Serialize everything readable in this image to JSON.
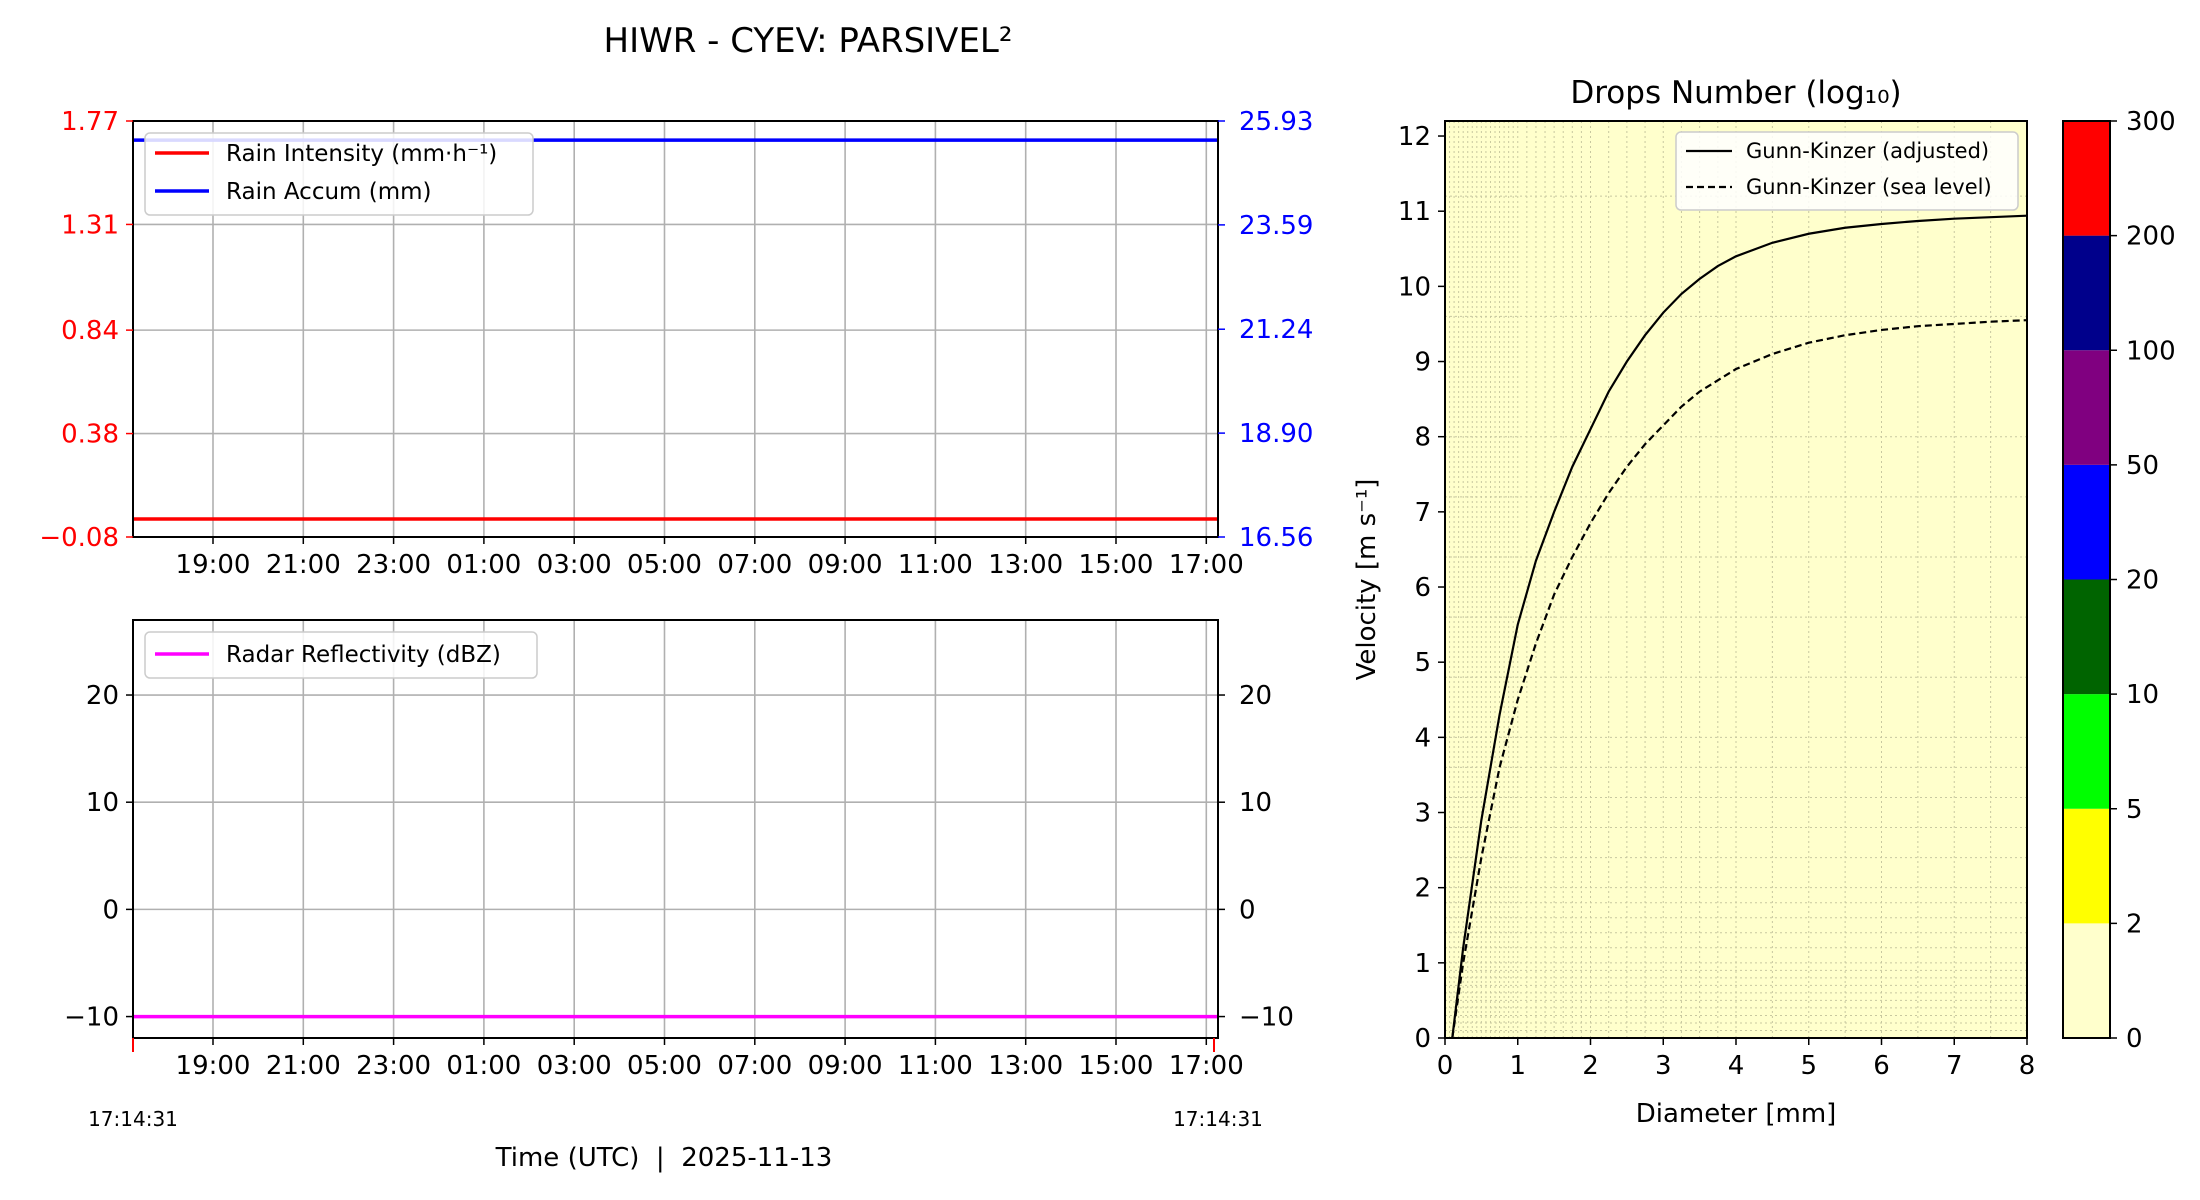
{
  "title": "HIWR - CYEV: PARSIVEL²",
  "colors": {
    "rain_intensity": "#ff0000",
    "rain_accum": "#0000ff",
    "reflectivity": "#ff00ff",
    "grid": "#b0b0b0",
    "dsd_background": "#ffffcc",
    "axis": "#000000"
  },
  "time_axis": {
    "tick_labels": [
      "19:00",
      "21:00",
      "23:00",
      "01:00",
      "03:00",
      "05:00",
      "07:00",
      "09:00",
      "11:00",
      "13:00",
      "15:00",
      "17:00"
    ],
    "start_label": "17:14:31",
    "end_label": "17:14:31",
    "xlabel": "Time (UTC)  |  2025-11-13"
  },
  "chart_data": [
    {
      "type": "line",
      "panel": "rain",
      "x_hours_from_start": [
        0,
        24
      ],
      "xlim_hours": [
        0,
        24
      ],
      "left_axis": {
        "ylim": [
          -0.08,
          1.77
        ],
        "tick_values": [
          -0.08,
          0.38,
          0.84,
          1.31,
          1.77
        ],
        "tick_labels": [
          "−0.08",
          "0.38",
          "0.84",
          "1.31",
          "1.77"
        ],
        "color": "#ff0000"
      },
      "right_axis": {
        "ylim": [
          16.56,
          25.93
        ],
        "tick_values": [
          16.56,
          18.9,
          21.24,
          23.59,
          25.93
        ],
        "tick_labels": [
          "16.56",
          "18.90",
          "21.24",
          "23.59",
          "25.93"
        ],
        "color": "#0000ff"
      },
      "series": [
        {
          "name": "Rain Intensity (mm·h⁻¹)",
          "axis": "left",
          "values": [
            0,
            0
          ],
          "color": "#ff0000"
        },
        {
          "name": "Rain Accum (mm)",
          "axis": "right",
          "values": [
            25.5,
            25.5
          ],
          "color": "#0000ff"
        }
      ],
      "legend": "upper-left",
      "grid": true
    },
    {
      "type": "line",
      "panel": "reflectivity",
      "x_hours_from_start": [
        0,
        24
      ],
      "xlim_hours": [
        0,
        24
      ],
      "ylim": [
        -12,
        27
      ],
      "tick_values": [
        -10,
        0,
        10,
        20
      ],
      "tick_labels": [
        "−10",
        "0",
        "10",
        "20"
      ],
      "series": [
        {
          "name": "Radar Reflectivity (dBZ)",
          "values": [
            -10,
            -10
          ],
          "color": "#ff00ff"
        }
      ],
      "legend": "upper-left",
      "grid": true
    },
    {
      "type": "heatmap",
      "panel": "dsd",
      "title": "Drops Number (log₁₀)",
      "xlabel": "Diameter [mm]",
      "ylabel": "Velocity [m s⁻¹]",
      "xlim": [
        0,
        8
      ],
      "ylim": [
        0,
        12.2
      ],
      "x_ticks": [
        0,
        1,
        2,
        3,
        4,
        5,
        6,
        7,
        8
      ],
      "y_ticks": [
        0,
        1,
        2,
        3,
        4,
        5,
        6,
        7,
        8,
        9,
        10,
        11,
        12
      ],
      "grid_minor_x": [
        0.0625,
        0.125,
        0.1875,
        0.25,
        0.3125,
        0.375,
        0.4375,
        0.5,
        0.5625,
        0.625,
        0.6875,
        0.75,
        0.8125,
        0.875,
        0.9375,
        1.0,
        1.125,
        1.25,
        1.375,
        1.5,
        1.625,
        1.75,
        1.875,
        2.0,
        2.25,
        2.5,
        2.75,
        3.0,
        3.25,
        3.5,
        3.75,
        4.0,
        4.5,
        5.0,
        5.5,
        6.0,
        6.5,
        7.0,
        7.5,
        8.0
      ],
      "grid_minor_y": [
        0.1,
        0.2,
        0.3,
        0.4,
        0.5,
        0.6,
        0.7,
        0.8,
        0.9,
        1.0,
        1.2,
        1.4,
        1.6,
        1.8,
        2.0,
        2.4,
        2.8,
        3.2,
        3.6,
        4.0,
        4.8,
        5.6,
        6.4,
        7.2,
        8.0,
        9.6,
        11.2
      ],
      "counts_all_zero": true,
      "series": [
        {
          "name": "Gunn-Kinzer (adjusted)",
          "style": "solid",
          "x": [
            0.1,
            0.25,
            0.5,
            0.75,
            1,
            1.25,
            1.5,
            1.75,
            2,
            2.25,
            2.5,
            2.75,
            3,
            3.25,
            3.5,
            3.75,
            4,
            4.5,
            5,
            5.5,
            6,
            6.5,
            7,
            7.5,
            8
          ],
          "y": [
            0.0,
            1.2,
            2.9,
            4.3,
            5.5,
            6.35,
            7.0,
            7.6,
            8.1,
            8.6,
            9.0,
            9.35,
            9.65,
            9.9,
            10.1,
            10.27,
            10.4,
            10.58,
            10.7,
            10.78,
            10.83,
            10.87,
            10.9,
            10.92,
            10.94
          ]
        },
        {
          "name": "Gunn-Kinzer (sea level)",
          "style": "dashed",
          "x": [
            0.1,
            0.25,
            0.5,
            0.75,
            1,
            1.25,
            1.5,
            1.75,
            2,
            2.25,
            2.5,
            2.75,
            3,
            3.25,
            3.5,
            3.75,
            4,
            4.5,
            5,
            5.5,
            6,
            6.5,
            7,
            7.5,
            8
          ],
          "y": [
            0.0,
            1.0,
            2.4,
            3.6,
            4.5,
            5.25,
            5.9,
            6.4,
            6.85,
            7.25,
            7.6,
            7.9,
            8.15,
            8.4,
            8.6,
            8.75,
            8.9,
            9.1,
            9.25,
            9.35,
            9.42,
            9.47,
            9.5,
            9.53,
            9.55
          ]
        }
      ],
      "legend": "upper-right",
      "colorbar": {
        "boundaries": [
          0,
          2,
          5,
          10,
          20,
          50,
          100,
          200,
          300
        ],
        "tick_labels": [
          "0",
          "2",
          "5",
          "10",
          "20",
          "50",
          "100",
          "200",
          "300"
        ],
        "colors": [
          "#ffffcc",
          "#ffff00",
          "#00ff00",
          "#006400",
          "#0000ff",
          "#800080",
          "#00008b",
          "#ff0000"
        ]
      }
    }
  ]
}
